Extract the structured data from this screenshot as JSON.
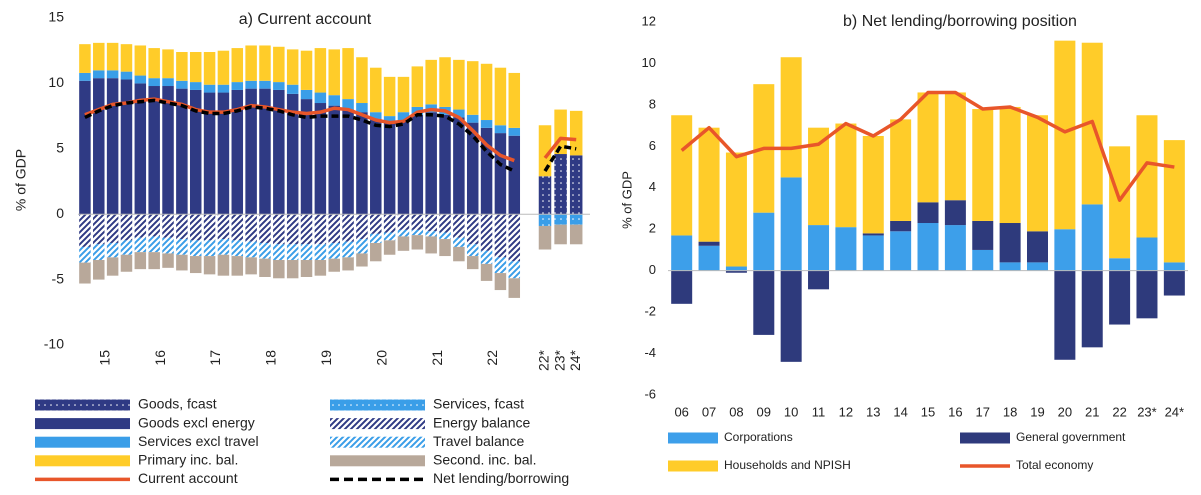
{
  "chart_data": [
    {
      "type": "bar",
      "stacked": true,
      "title": "a) Current account",
      "y_label": "% of GDP",
      "categories": [
        null,
        "15",
        null,
        null,
        null,
        "16",
        null,
        null,
        null,
        "17",
        null,
        null,
        null,
        "18",
        null,
        null,
        null,
        "19",
        null,
        null,
        null,
        "20",
        null,
        null,
        null,
        "21",
        null,
        null,
        null,
        "22",
        null,
        null,
        "22*",
        "23*",
        "24*"
      ],
      "ylim": [
        -10,
        15
      ],
      "yticks": [
        -10,
        -5,
        0,
        5,
        10,
        15
      ],
      "series": [
        {
          "name": "Goods, fcast",
          "color": "#2f3a84",
          "pattern": "dots",
          "values": [
            null,
            null,
            null,
            null,
            null,
            null,
            null,
            null,
            null,
            null,
            null,
            null,
            null,
            null,
            null,
            null,
            null,
            null,
            null,
            null,
            null,
            null,
            null,
            null,
            null,
            null,
            null,
            null,
            null,
            null,
            null,
            null,
            2.9,
            4.6,
            4.5
          ]
        },
        {
          "name": "Services, fcast",
          "color": "#3a9ee8",
          "pattern": "dots",
          "values": [
            null,
            null,
            null,
            null,
            null,
            null,
            null,
            null,
            null,
            null,
            null,
            null,
            null,
            null,
            null,
            null,
            null,
            null,
            null,
            null,
            null,
            null,
            null,
            null,
            null,
            null,
            null,
            null,
            null,
            null,
            null,
            null,
            -0.9,
            -0.8,
            -0.8
          ]
        },
        {
          "name": "Goods excl energy",
          "color": "#2f3a84",
          "values": [
            10.2,
            10.4,
            10.4,
            10.3,
            10.0,
            9.8,
            9.8,
            9.6,
            9.5,
            9.3,
            9.3,
            9.5,
            9.6,
            9.6,
            9.5,
            9.2,
            8.8,
            8.5,
            8.3,
            8.0,
            7.8,
            7.3,
            7.0,
            7.2,
            7.6,
            7.8,
            7.6,
            7.4,
            7.0,
            6.6,
            6.2,
            6.0,
            null,
            null,
            null
          ]
        },
        {
          "name": "Energy balance",
          "color": "#2f3a84",
          "pattern": "hatch",
          "values": [
            -2.5,
            -2.3,
            -2.2,
            -2.0,
            -1.8,
            -1.7,
            -1.8,
            -1.9,
            -2.0,
            -2.0,
            -1.9,
            -2.0,
            -2.1,
            -2.2,
            -2.3,
            -2.3,
            -2.3,
            -2.3,
            -2.2,
            -2.1,
            -1.9,
            -1.5,
            -1.4,
            -1.2,
            -1.2,
            -1.3,
            -1.4,
            -1.8,
            -2.3,
            -2.8,
            -3.3,
            -3.6,
            null,
            null,
            null
          ]
        },
        {
          "name": "Services excl travel",
          "color": "#3a9ee8",
          "values": [
            0.6,
            0.6,
            0.6,
            0.6,
            0.6,
            0.6,
            0.6,
            0.6,
            0.6,
            0.6,
            0.6,
            0.6,
            0.6,
            0.6,
            0.6,
            0.7,
            0.7,
            0.8,
            0.8,
            0.8,
            0.7,
            0.5,
            0.5,
            0.6,
            0.6,
            0.6,
            0.6,
            0.6,
            0.6,
            0.6,
            0.6,
            0.6,
            null,
            null,
            null
          ]
        },
        {
          "name": "Travel balance",
          "color": "#3a9ee8",
          "pattern": "hatch",
          "values": [
            -1.2,
            -1.2,
            -1.1,
            -1.1,
            -1.1,
            -1.2,
            -1.2,
            -1.2,
            -1.2,
            -1.2,
            -1.2,
            -1.2,
            -1.2,
            -1.2,
            -1.2,
            -1.2,
            -1.2,
            -1.2,
            -1.2,
            -1.2,
            -1.1,
            -0.7,
            -0.6,
            -0.5,
            -0.4,
            -0.4,
            -0.5,
            -0.7,
            -0.9,
            -1.0,
            -1.2,
            -1.3,
            null,
            null,
            null
          ]
        },
        {
          "name": "Primary inc. bal.",
          "color": "#ffcc29",
          "values": [
            2.2,
            2.1,
            2.1,
            2.1,
            2.3,
            2.3,
            2.2,
            2.2,
            2.3,
            2.5,
            2.6,
            2.6,
            2.7,
            2.7,
            2.7,
            2.7,
            3.0,
            3.4,
            3.5,
            3.9,
            3.5,
            3.4,
            3.0,
            2.7,
            3.1,
            3.4,
            3.8,
            3.8,
            4.1,
            4.3,
            4.4,
            4.2,
            3.9,
            3.4,
            3.4
          ]
        },
        {
          "name": "Second. inc. bal.",
          "color": "#b8a89a",
          "values": [
            -1.6,
            -1.5,
            -1.4,
            -1.3,
            -1.3,
            -1.3,
            -1.1,
            -1.2,
            -1.3,
            -1.4,
            -1.6,
            -1.5,
            -1.3,
            -1.4,
            -1.4,
            -1.4,
            -1.3,
            -1.2,
            -1.0,
            -1.0,
            -1.0,
            -1.4,
            -1.1,
            -1.1,
            -1.1,
            -1.3,
            -1.3,
            -1.1,
            -1.0,
            -1.3,
            -1.3,
            -1.5,
            -1.8,
            -1.5,
            -1.5
          ]
        },
        {
          "name": "Current account",
          "type": "line",
          "color": "#e8562a",
          "values": [
            7.6,
            8.0,
            8.4,
            8.5,
            8.7,
            8.8,
            8.6,
            8.4,
            8.0,
            7.8,
            7.8,
            8.0,
            8.3,
            8.2,
            8.0,
            7.8,
            7.7,
            7.8,
            8.1,
            8.0,
            7.6,
            7.2,
            7.0,
            7.1,
            7.8,
            8.0,
            7.9,
            7.4,
            6.4,
            5.3,
            4.5,
            4.1,
            4.3,
            5.8,
            5.7
          ]
        },
        {
          "name": "Net lending/borrowing",
          "type": "line",
          "dashed": true,
          "color": "#000000",
          "values": [
            7.4,
            7.9,
            8.3,
            8.5,
            8.6,
            8.7,
            8.5,
            8.3,
            7.9,
            7.7,
            7.7,
            7.9,
            8.2,
            8.1,
            7.9,
            7.6,
            7.4,
            7.5,
            7.5,
            7.5,
            7.2,
            6.8,
            6.7,
            6.9,
            7.6,
            7.6,
            7.5,
            6.9,
            6.0,
            4.8,
            3.8,
            3.3,
            3.3,
            5.2,
            5.0
          ]
        }
      ]
    },
    {
      "type": "bar",
      "stacked": true,
      "title": "b) Net lending/borrowing position",
      "y_label": "% of GDP",
      "categories": [
        "06",
        "07",
        "08",
        "09",
        "10",
        "11",
        "12",
        "13",
        "14",
        "15",
        "16",
        "17",
        "18",
        "19",
        "20",
        "21",
        "22",
        "23*",
        "24*"
      ],
      "ylim": [
        -6,
        12
      ],
      "yticks": [
        -6,
        -4,
        -2,
        0,
        2,
        4,
        6,
        8,
        10,
        12
      ],
      "series": [
        {
          "name": "Corporations",
          "color": "#3d9fea",
          "values": [
            1.7,
            1.2,
            0.2,
            2.8,
            4.5,
            2.2,
            2.1,
            1.7,
            1.9,
            2.3,
            2.2,
            1.0,
            0.4,
            0.4,
            2.0,
            3.2,
            0.6,
            1.6,
            0.4
          ]
        },
        {
          "name": "General government",
          "color": "#2e3a7c",
          "values": [
            -1.6,
            0.2,
            -0.1,
            -3.1,
            -4.4,
            -0.9,
            0,
            0.1,
            0.5,
            1.0,
            1.2,
            1.4,
            1.9,
            1.5,
            -4.3,
            -3.7,
            -2.6,
            -2.3,
            -1.2
          ]
        },
        {
          "name": "Households and NPISH",
          "color": "#ffcc29",
          "values": [
            5.8,
            5.5,
            5.5,
            6.2,
            5.8,
            4.7,
            5.0,
            4.7,
            4.9,
            5.3,
            5.2,
            5.4,
            5.6,
            5.6,
            9.1,
            7.8,
            5.4,
            5.9,
            5.9
          ]
        },
        {
          "name": "Total economy",
          "type": "line",
          "color": "#e8562a",
          "values": [
            5.8,
            6.9,
            5.5,
            5.9,
            5.9,
            6.1,
            7.1,
            6.5,
            7.3,
            8.6,
            8.6,
            7.8,
            7.9,
            7.4,
            6.7,
            7.2,
            3.4,
            5.2,
            5.0
          ]
        }
      ]
    }
  ]
}
